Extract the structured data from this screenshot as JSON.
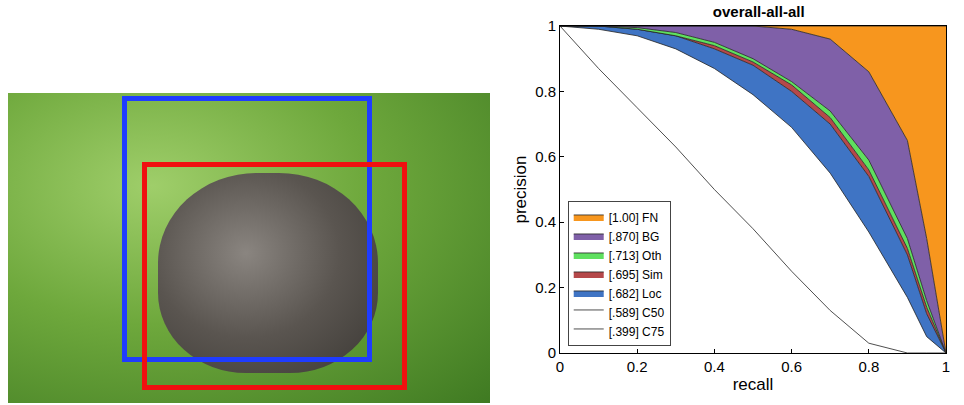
{
  "chart_data": {
    "type": "area",
    "title": "overall-all-all",
    "x_label": "recall",
    "y_label": "precision",
    "x": [
      0,
      0.1,
      0.2,
      0.3,
      0.4,
      0.5,
      0.6,
      0.7,
      0.8,
      0.9,
      0.95,
      1
    ],
    "series": [
      {
        "name": "[.399] C75",
        "color": "#ffffff",
        "values": [
          1,
          0.87,
          0.75,
          0.63,
          0.5,
          0.38,
          0.25,
          0.13,
          0.03,
          0,
          0,
          0
        ]
      },
      {
        "name": "[.589] C50",
        "color": "#ffffff",
        "values": [
          1,
          0.99,
          0.97,
          0.93,
          0.87,
          0.79,
          0.69,
          0.55,
          0.37,
          0.17,
          0.05,
          0
        ]
      },
      {
        "name": "[.682] Loc",
        "color": "#3f74c4",
        "values": [
          1,
          1,
          0.99,
          0.97,
          0.93,
          0.88,
          0.8,
          0.7,
          0.54,
          0.3,
          0.12,
          0
        ]
      },
      {
        "name": "[.695] Sim",
        "color": "#b5484a",
        "values": [
          1,
          1,
          0.99,
          0.97,
          0.94,
          0.89,
          0.82,
          0.72,
          0.56,
          0.32,
          0.14,
          0
        ]
      },
      {
        "name": "[.713] Oth",
        "color": "#5fe05f",
        "values": [
          1,
          1,
          0.995,
          0.98,
          0.95,
          0.9,
          0.83,
          0.74,
          0.59,
          0.35,
          0.16,
          0
        ]
      },
      {
        "name": "[.870] BG",
        "color": "#7f60a8",
        "values": [
          1,
          1,
          1,
          1,
          1,
          1,
          0.99,
          0.96,
          0.86,
          0.65,
          0.35,
          0
        ]
      },
      {
        "name": "[1.00] FN",
        "color": "#f7961e",
        "values": [
          1,
          1,
          1,
          1,
          1,
          1,
          1,
          1,
          1,
          1,
          1,
          1
        ]
      }
    ],
    "xlim": [
      0,
      1
    ],
    "ylim": [
      0,
      1
    ],
    "xticks": [
      0,
      0.2,
      0.4,
      0.6,
      0.8,
      1
    ],
    "yticks": [
      0,
      0.2,
      0.4,
      0.6,
      0.8,
      1
    ],
    "grid": false,
    "legend": "bottom left"
  }
}
